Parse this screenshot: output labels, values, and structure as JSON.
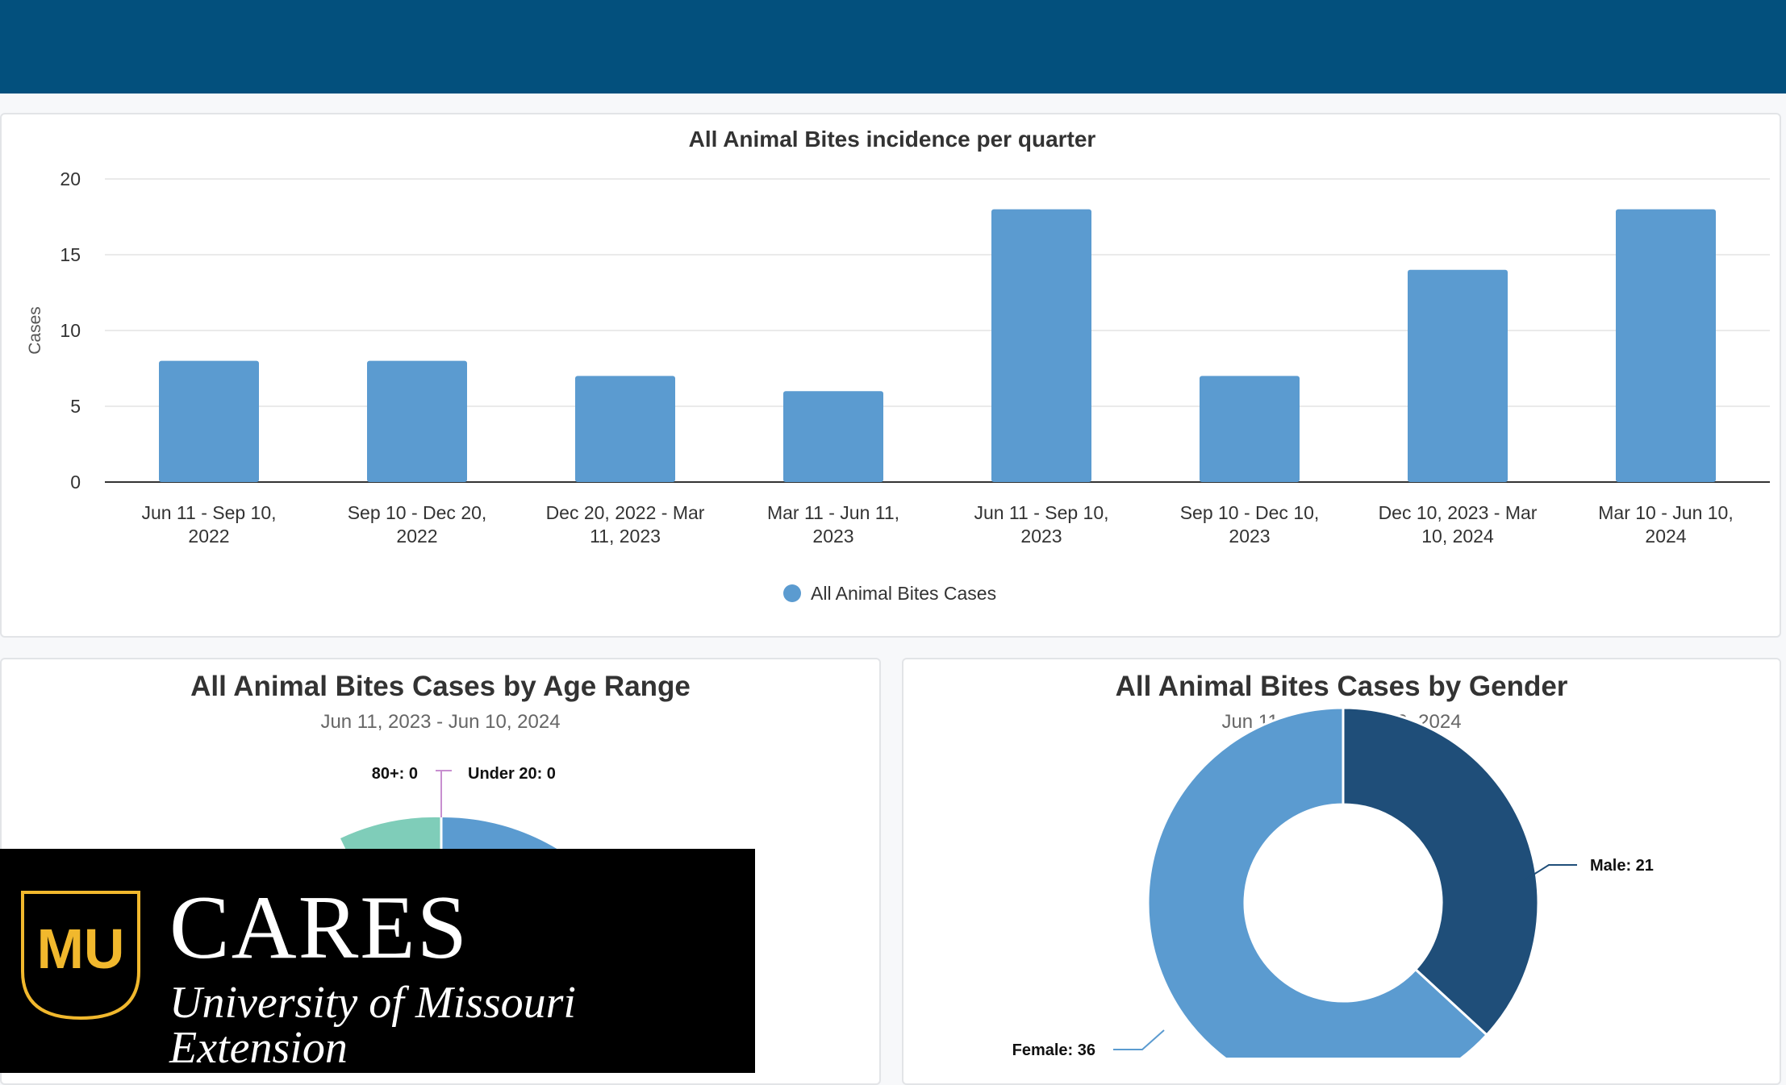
{
  "header": {
    "bg": "#03507d"
  },
  "bar_card": {
    "chart_data": {
      "type": "bar",
      "title": "All Animal Bites incidence per quarter",
      "ylabel": "Cases",
      "ylim": [
        0,
        20
      ],
      "yticks": [
        "0",
        "5",
        "10",
        "15",
        "20"
      ],
      "categories": [
        [
          "Jun 11 - Sep 10,",
          "2022"
        ],
        [
          "Sep 10 - Dec 20,",
          "2022"
        ],
        [
          "Dec 20, 2022 - Mar",
          "11, 2023"
        ],
        [
          "Mar 11 - Jun 11,",
          "2023"
        ],
        [
          "Jun 11 - Sep 10,",
          "2023"
        ],
        [
          "Sep 10 - Dec 10,",
          "2023"
        ],
        [
          "Dec 10, 2023 - Mar",
          "10, 2024"
        ],
        [
          "Mar 10 - Jun 10,",
          "2024"
        ]
      ],
      "series": [
        {
          "name": "All Animal Bites Cases",
          "values": [
            8,
            8,
            7,
            6,
            18,
            7,
            14,
            18
          ],
          "color": "#5b9bd0"
        }
      ],
      "grid": true,
      "legend": "bottom-center"
    }
  },
  "age_card": {
    "title": "All Animal Bites Cases by Age Range",
    "subtitle": "Jun 11, 2023 - Jun 10, 2024",
    "chart_data": {
      "type": "pie",
      "title": "All Animal Bites Cases by Age Range",
      "subtitle": "Jun 11, 2023 - Jun 10, 2024",
      "labels": [
        "80+: 0",
        "Under 20: 0"
      ],
      "colors": [
        "#7fcdb9",
        "#5b9bd0",
        "#c88fd0"
      ]
    }
  },
  "gender_card": {
    "title": "All Animal Bites Cases by Gender",
    "subtitle": "Jun 11, 2023 - Jun 10, 2024",
    "chart_data": {
      "type": "pie",
      "title": "All Animal Bites Cases by Gender",
      "subtitle": "Jun 11, 2023 - Jun 10, 2024",
      "slices": [
        {
          "name": "Male",
          "value": 21,
          "label": "Male: 21",
          "color": "#1f4e79"
        },
        {
          "name": "Female",
          "value": 36,
          "label": "Female: 36",
          "color": "#5b9bd0"
        }
      ]
    }
  },
  "logo": {
    "title": "CARES",
    "subtitle": "University of Missouri Extension",
    "mark_letters": "MU",
    "gold": "#f1b82d"
  }
}
